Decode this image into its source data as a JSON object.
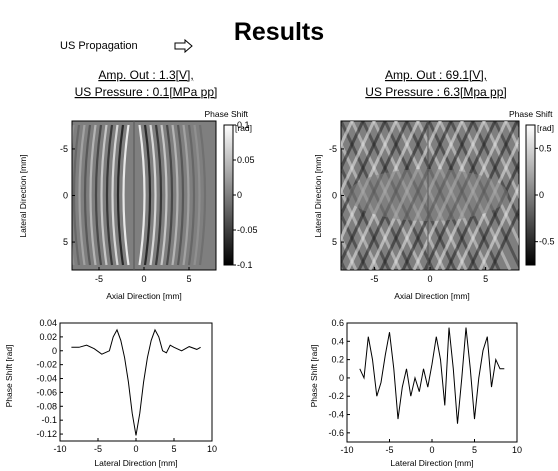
{
  "title": "Results",
  "propagation_label": "US Propagation",
  "colors": {
    "text": "#000000",
    "grid": "#808080",
    "background": "#ffffff"
  },
  "panels": [
    {
      "amp_label": "Amp. Out : 1.3[V],",
      "pressure_label": "US Pressure : 0.1[MPa pp]"
    },
    {
      "amp_label": "Amp. Out : 69.1[V],",
      "pressure_label": "US Pressure : 6.3[Mpa pp]"
    }
  ],
  "chart_data": [
    {
      "type": "heatmap",
      "title": "",
      "xlabel": "Axial Direction [mm]",
      "ylabel": "Lateral Direction [mm]",
      "xlim": [
        -8,
        8
      ],
      "ylim": [
        -8,
        8
      ],
      "xticks": [
        "-5",
        "0",
        "5"
      ],
      "yticks": [
        "-5",
        "0",
        "5"
      ],
      "colorbar_label": "Phase Shift",
      "colorbar_unit": "[rad]",
      "colorbar_ticks": [
        "0.1",
        "0.05",
        "0",
        "-0.05",
        "-0.1"
      ],
      "clim": [
        -0.1,
        0.1
      ]
    },
    {
      "type": "heatmap",
      "title": "",
      "xlabel": "Axial Direction [mm]",
      "ylabel": "Lateral Direction [mm]",
      "xlim": [
        -8,
        8
      ],
      "ylim": [
        -8,
        8
      ],
      "xticks": [
        "-5",
        "0",
        "5"
      ],
      "yticks": [
        "-5",
        "0",
        "5"
      ],
      "colorbar_label": "Phase Shift",
      "colorbar_unit": "[rad]",
      "colorbar_ticks": [
        "0.5",
        "0",
        "-0.5"
      ],
      "clim": [
        -0.75,
        0.75
      ]
    },
    {
      "type": "line",
      "xlabel": "Lateral Direction [mm]",
      "ylabel": "Phase Shift [rad]",
      "xlim": [
        -10,
        10
      ],
      "ylim": [
        -0.13,
        0.04
      ],
      "xticks": [
        "-10",
        "-5",
        "0",
        "5",
        "10"
      ],
      "yticks": [
        "0.04",
        "0.02",
        "0",
        "-0.02",
        "-0.04",
        "-0.06",
        "-0.08",
        "-0.1",
        "-0.12"
      ],
      "series": [
        {
          "x": [
            -8.5,
            -7.5,
            -6.5,
            -5.5,
            -4.5,
            -3.5,
            -3.0,
            -2.5,
            -2.0,
            -1.5,
            -1.0,
            -0.5,
            0.0,
            0.5,
            1.0,
            1.5,
            2.0,
            2.5,
            3.0,
            3.5,
            4.0,
            4.5,
            5.0,
            6.0,
            7.0,
            8.0,
            8.5
          ],
          "y": [
            0.005,
            0.005,
            0.008,
            0.003,
            -0.005,
            0.0,
            0.02,
            0.03,
            0.015,
            -0.01,
            -0.045,
            -0.09,
            -0.122,
            -0.09,
            -0.045,
            -0.01,
            0.015,
            0.03,
            0.02,
            0.0,
            -0.003,
            0.008,
            0.005,
            0.0,
            0.006,
            0.002,
            0.005
          ]
        }
      ]
    },
    {
      "type": "line",
      "xlabel": "Lateral Direction [mm]",
      "ylabel": "Phase Shift [rad]",
      "xlim": [
        -10,
        10
      ],
      "ylim": [
        -0.7,
        0.6
      ],
      "xticks": [
        "-10",
        "-5",
        "0",
        "5",
        "10"
      ],
      "yticks": [
        "0.6",
        "0.4",
        "0.2",
        "0",
        "-0.2",
        "-0.4",
        "-0.6"
      ],
      "series": [
        {
          "x": [
            -8.5,
            -8.0,
            -7.5,
            -7.0,
            -6.5,
            -6.0,
            -5.5,
            -5.0,
            -4.5,
            -4.0,
            -3.5,
            -3.0,
            -2.5,
            -2.0,
            -1.5,
            -1.0,
            -0.5,
            0.0,
            0.5,
            1.0,
            1.5,
            2.0,
            2.5,
            3.0,
            3.5,
            4.0,
            4.5,
            5.0,
            5.5,
            6.0,
            6.5,
            7.0,
            7.5,
            8.0,
            8.5
          ],
          "y": [
            0.1,
            0.0,
            0.45,
            0.2,
            -0.2,
            -0.05,
            0.25,
            0.5,
            0.1,
            -0.45,
            -0.1,
            0.1,
            -0.2,
            0.0,
            -0.15,
            0.1,
            -0.1,
            0.15,
            0.45,
            0.2,
            -0.3,
            0.55,
            0.1,
            -0.5,
            0.0,
            0.55,
            0.1,
            -0.45,
            0.0,
            0.3,
            0.45,
            -0.1,
            0.2,
            0.1,
            0.1
          ]
        }
      ]
    }
  ]
}
